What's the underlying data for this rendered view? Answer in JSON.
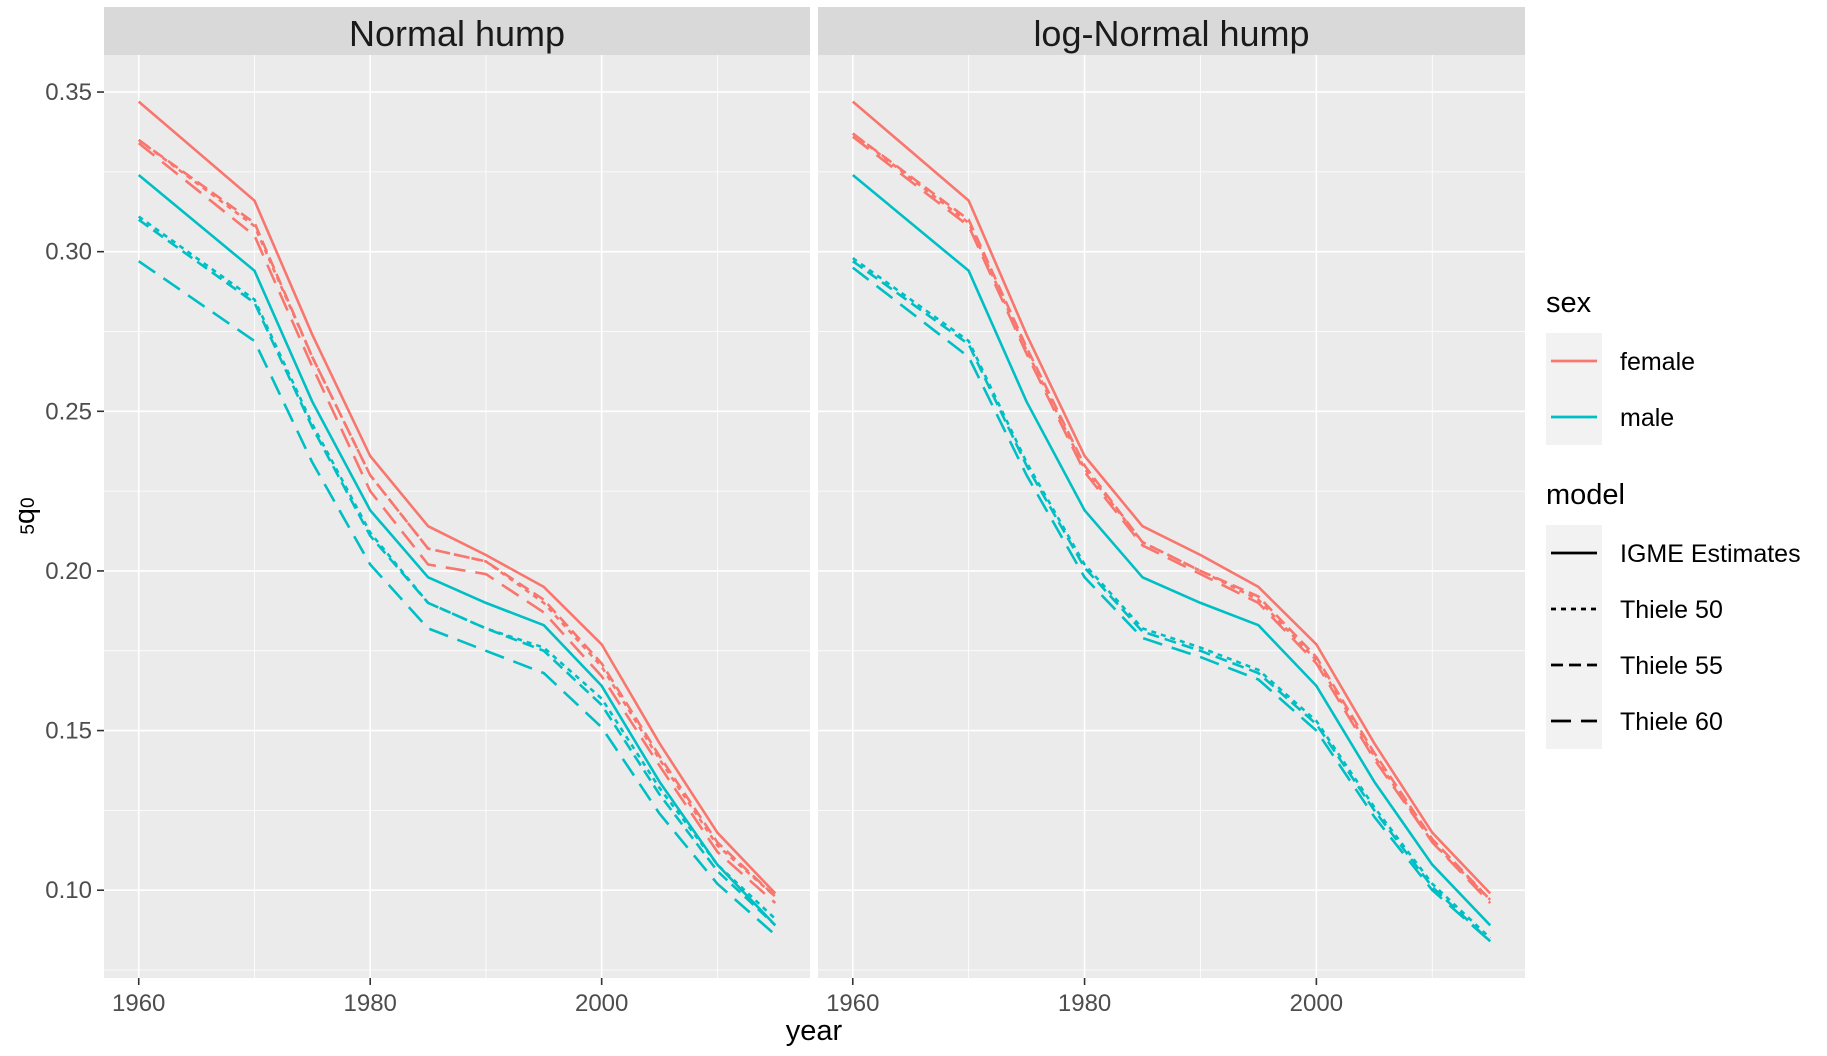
{
  "chart_data": {
    "type": "line",
    "xlabel": "year",
    "ylabel": "5q0",
    "xlim": [
      1957,
      2018
    ],
    "ylim": [
      0.0725,
      0.3616
    ],
    "x_ticks": [
      1960,
      1980,
      2000
    ],
    "y_ticks": [
      0.1,
      0.15,
      0.2,
      0.25,
      0.3,
      0.35
    ],
    "y_tick_labels": [
      "0.10",
      "0.15",
      "0.20",
      "0.25",
      "0.30",
      "0.35"
    ],
    "grid": true,
    "legend_placement": "right",
    "colors": {
      "female": "#F8766D",
      "male": "#00BFC4"
    },
    "legends": [
      {
        "title": "sex",
        "entries": [
          {
            "label": "female",
            "color": "#F8766D"
          },
          {
            "label": "male",
            "color": "#00BFC4"
          }
        ]
      },
      {
        "title": "model",
        "entries": [
          {
            "label": "IGME Estimates",
            "linetype": "solid"
          },
          {
            "label": "Thiele 50",
            "linetype": "dotted"
          },
          {
            "label": "Thiele 55",
            "linetype": "dashed"
          },
          {
            "label": "Thiele 60",
            "linetype": "longdash"
          }
        ]
      }
    ],
    "x": [
      1960,
      1970,
      1975,
      1980,
      1985,
      1990,
      1995,
      2000,
      2005,
      2010,
      2015
    ],
    "panels": [
      {
        "title": "Normal hump",
        "series": [
          {
            "sex": "female",
            "model": "IGME Estimates",
            "values": [
              0.347,
              0.316,
              0.274,
              0.236,
              0.214,
              0.205,
              0.195,
              0.177,
              0.146,
              0.118,
              0.099
            ]
          },
          {
            "sex": "female",
            "model": "Thiele 50",
            "values": [
              0.335,
              0.308,
              0.267,
              0.23,
              0.207,
              0.203,
              0.19,
              0.17,
              0.141,
              0.114,
              0.098
            ]
          },
          {
            "sex": "female",
            "model": "Thiele 55",
            "values": [
              0.335,
              0.309,
              0.267,
              0.23,
              0.207,
              0.203,
              0.191,
              0.171,
              0.142,
              0.115,
              0.098
            ]
          },
          {
            "sex": "female",
            "model": "Thiele 60",
            "values": [
              0.334,
              0.305,
              0.264,
              0.225,
              0.202,
              0.199,
              0.187,
              0.167,
              0.139,
              0.112,
              0.096
            ]
          },
          {
            "sex": "male",
            "model": "IGME Estimates",
            "values": [
              0.324,
              0.294,
              0.253,
              0.219,
              0.198,
              0.19,
              0.183,
              0.164,
              0.134,
              0.108,
              0.089
            ]
          },
          {
            "sex": "male",
            "model": "Thiele 50",
            "values": [
              0.311,
              0.285,
              0.246,
              0.212,
              0.19,
              0.182,
              0.176,
              0.16,
              0.132,
              0.108,
              0.091
            ]
          },
          {
            "sex": "male",
            "model": "Thiele 55",
            "values": [
              0.31,
              0.284,
              0.245,
              0.211,
              0.19,
              0.182,
              0.175,
              0.158,
              0.13,
              0.106,
              0.089
            ]
          },
          {
            "sex": "male",
            "model": "Thiele 60",
            "values": [
              0.297,
              0.272,
              0.234,
              0.202,
              0.182,
              0.175,
              0.168,
              0.151,
              0.124,
              0.102,
              0.086
            ]
          }
        ]
      },
      {
        "title": "log-Normal hump",
        "series": [
          {
            "sex": "female",
            "model": "IGME Estimates",
            "values": [
              0.347,
              0.316,
              0.274,
              0.236,
              0.214,
              0.205,
              0.195,
              0.177,
              0.146,
              0.118,
              0.099
            ]
          },
          {
            "sex": "female",
            "model": "Thiele 50",
            "values": [
              0.337,
              0.309,
              0.269,
              0.232,
              0.209,
              0.2,
              0.191,
              0.172,
              0.142,
              0.115,
              0.097
            ]
          },
          {
            "sex": "female",
            "model": "Thiele 55",
            "values": [
              0.337,
              0.31,
              0.27,
              0.233,
              0.209,
              0.2,
              0.192,
              0.173,
              0.143,
              0.116,
              0.097
            ]
          },
          {
            "sex": "female",
            "model": "Thiele 60",
            "values": [
              0.336,
              0.308,
              0.268,
              0.231,
              0.208,
              0.199,
              0.19,
              0.171,
              0.141,
              0.115,
              0.096
            ]
          },
          {
            "sex": "male",
            "model": "IGME Estimates",
            "values": [
              0.324,
              0.294,
              0.253,
              0.219,
              0.198,
              0.19,
              0.183,
              0.164,
              0.134,
              0.108,
              0.089
            ]
          },
          {
            "sex": "male",
            "model": "Thiele 50",
            "values": [
              0.298,
              0.272,
              0.234,
              0.202,
              0.182,
              0.176,
              0.169,
              0.153,
              0.126,
              0.102,
              0.085
            ]
          },
          {
            "sex": "male",
            "model": "Thiele 55",
            "values": [
              0.297,
              0.271,
              0.233,
              0.201,
              0.181,
              0.175,
              0.168,
              0.152,
              0.125,
              0.101,
              0.084
            ]
          },
          {
            "sex": "male",
            "model": "Thiele 60",
            "values": [
              0.295,
              0.267,
              0.23,
              0.198,
              0.179,
              0.173,
              0.166,
              0.15,
              0.123,
              0.1,
              0.084
            ]
          }
        ]
      }
    ]
  }
}
